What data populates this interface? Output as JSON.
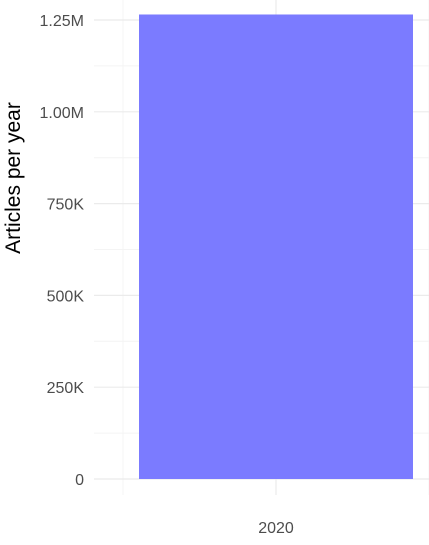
{
  "chart_data": {
    "type": "bar",
    "categories": [
      "2020"
    ],
    "values": [
      1265000
    ],
    "title": "",
    "xlabel": "",
    "ylabel": "Articles per year",
    "ylim": [
      0,
      1300000
    ],
    "y_ticks": [
      {
        "value": 0,
        "label": "0"
      },
      {
        "value": 250000,
        "label": "250K"
      },
      {
        "value": 500000,
        "label": "500K"
      },
      {
        "value": 750000,
        "label": "750K"
      },
      {
        "value": 1000000,
        "label": "1.00M"
      },
      {
        "value": 1250000,
        "label": "1.25M"
      }
    ],
    "grid": true,
    "legend": "none",
    "colors": {
      "bar": "#7b7bff",
      "major_grid": "#ebebeb",
      "minor_grid": "#f4f4f4",
      "tick_text": "#4d4d4d",
      "axis_title": "#000000"
    }
  }
}
